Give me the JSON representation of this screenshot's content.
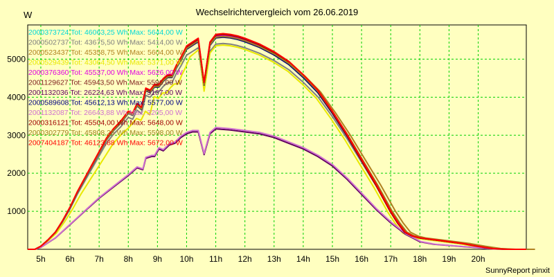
{
  "chart_data": {
    "type": "line",
    "title": "Wechselrichtervergleich vom 26.06.2019",
    "ylabel": "W",
    "xlabel": "",
    "footer": "SunnyReport pinxit",
    "grid": true,
    "legend_position": "top-left",
    "x_range": [
      4.55,
      21.65
    ],
    "y_range": [
      0,
      5900
    ],
    "x_ticks": [
      {
        "value": 5,
        "label": "5h"
      },
      {
        "value": 6,
        "label": "6h"
      },
      {
        "value": 7,
        "label": "7h"
      },
      {
        "value": 8,
        "label": "8h"
      },
      {
        "value": 9,
        "label": "9h"
      },
      {
        "value": 10,
        "label": "10h"
      },
      {
        "value": 11,
        "label": "11h"
      },
      {
        "value": 12,
        "label": "12h"
      },
      {
        "value": 13,
        "label": "13h"
      },
      {
        "value": 14,
        "label": "14h"
      },
      {
        "value": 15,
        "label": "15h"
      },
      {
        "value": 16,
        "label": "16h"
      },
      {
        "value": 17,
        "label": "17h"
      },
      {
        "value": 18,
        "label": "18h"
      },
      {
        "value": 19,
        "label": "19h"
      },
      {
        "value": 20,
        "label": "20h"
      }
    ],
    "y_ticks": [
      {
        "value": 1000,
        "label": "1000"
      },
      {
        "value": 2000,
        "label": "2000"
      },
      {
        "value": 3000,
        "label": "3000"
      },
      {
        "value": 4000,
        "label": "4000"
      },
      {
        "value": 5000,
        "label": "5000"
      }
    ],
    "series": [
      {
        "name": "2000373724 Tot: 46063,25 Wh Max: 5644,00 W",
        "color": "#00d8d8",
        "profile": "full",
        "peak": 5644,
        "late": 0,
        "early": 0
      },
      {
        "name": "2000502737 Tot: 43675,50 Wh Max: 5414,00 W",
        "color": "#808080",
        "profile": "full",
        "peak": 5414,
        "late": 0.05,
        "early": 0
      },
      {
        "name": "2000523437 Tot: 45358,75 Wh Max: 5604,00 W",
        "color": "#b08020",
        "profile": "full",
        "peak": 5604,
        "late": 0.3,
        "early": 0
      },
      {
        "name": "2000529439 Tot: 43064,50 Wh Max: 5371,00 W",
        "color": "#e8e800",
        "profile": "full",
        "peak": 5371,
        "late": -0.15,
        "early": 0.5
      },
      {
        "name": "2000376360 Tot: 45537,00 Wh Max: 5626,00 W",
        "color": "#e000e0",
        "profile": "full",
        "peak": 5626,
        "late": 0,
        "early": 0
      },
      {
        "name": "2001129627 Tot: 45943,50 Wh Max: 5596,00 W",
        "color": "#802020",
        "profile": "full",
        "peak": 5596,
        "late": 0,
        "early": 0
      },
      {
        "name": "2001132036 Tot: 26224,63 Wh Max: 3167,00 W",
        "color": "#600060",
        "profile": "half",
        "peak": 3167,
        "late": 0,
        "early": 0
      },
      {
        "name": "2000589608 Tot: 45612,13 Wh Max: 5577,00 W",
        "color": "#000080",
        "profile": "full",
        "peak": 5577,
        "late": 0,
        "early": 0
      },
      {
        "name": "2001132087 Tot: 26643,88 Wh Max: 3205,00 W",
        "color": "#d070d0",
        "profile": "half",
        "peak": 3205,
        "late": 0.05,
        "early": 0
      },
      {
        "name": "2000316121 Tot: 45504,00 Wh Max: 5648,00 W",
        "color": "#a00000",
        "profile": "full",
        "peak": 5648,
        "late": -0.05,
        "early": 0
      },
      {
        "name": "2000302779 Tot: 45808,25 Wh Max: 5598,00 W",
        "color": "#a08020",
        "profile": "full",
        "peak": 5598,
        "late": 0.1,
        "early": 0
      },
      {
        "name": "2007404187 Tot: 46123,88 Wh Max: 5672,00 W",
        "color": "#ff0000",
        "profile": "full",
        "peak": 5672,
        "late": 0,
        "early": 0
      }
    ],
    "base_full": {
      "x": [
        4.55,
        4.8,
        5.0,
        5.25,
        5.5,
        5.75,
        6.0,
        6.25,
        6.5,
        6.75,
        7.0,
        7.25,
        7.5,
        7.75,
        8.0,
        8.15,
        8.3,
        8.45,
        8.6,
        8.75,
        8.9,
        9.05,
        9.2,
        9.35,
        9.5,
        9.65,
        9.8,
        10.0,
        10.2,
        10.4,
        10.6,
        10.8,
        11.0,
        11.25,
        11.5,
        11.75,
        12.0,
        12.5,
        13.0,
        13.5,
        14.0,
        14.5,
        15.0,
        15.5,
        16.0,
        16.5,
        17.0,
        17.25,
        17.5,
        17.75,
        18.0,
        18.5,
        19.0,
        19.5,
        20.0,
        20.5,
        21.0,
        21.65
      ],
      "y": [
        0,
        0,
        80,
        250,
        450,
        750,
        1100,
        1500,
        1850,
        2200,
        2550,
        2900,
        3150,
        3350,
        3600,
        3550,
        3800,
        3700,
        4200,
        4150,
        4300,
        4300,
        4450,
        4550,
        4550,
        4800,
        5000,
        5300,
        5400,
        5500,
        4350,
        5400,
        5600,
        5620,
        5600,
        5560,
        5500,
        5350,
        5150,
        4900,
        4550,
        4150,
        3600,
        3000,
        2350,
        1700,
        1000,
        700,
        450,
        350,
        300,
        250,
        200,
        150,
        80,
        20,
        0,
        0
      ]
    },
    "base_half": {
      "x": [
        4.55,
        4.8,
        5.0,
        5.5,
        6.0,
        6.5,
        7.0,
        7.5,
        8.0,
        8.3,
        8.5,
        8.6,
        8.8,
        8.9,
        9.05,
        9.2,
        9.4,
        9.6,
        9.8,
        10.0,
        10.2,
        10.4,
        10.6,
        10.8,
        11.0,
        11.5,
        12.0,
        12.5,
        13.0,
        13.5,
        14.0,
        14.5,
        15.0,
        15.5,
        16.0,
        16.5,
        17.0,
        17.5,
        18.0,
        18.5,
        19.0,
        19.5,
        20.0,
        20.5,
        21.0,
        21.65
      ],
      "y": [
        0,
        0,
        50,
        300,
        650,
        1000,
        1350,
        1650,
        1950,
        2150,
        2100,
        2400,
        2450,
        2450,
        2650,
        2600,
        2750,
        2800,
        2950,
        3050,
        3100,
        3100,
        2500,
        3050,
        3180,
        3150,
        3100,
        3050,
        2950,
        2800,
        2650,
        2450,
        2200,
        1850,
        1450,
        1050,
        700,
        400,
        200,
        130,
        100,
        70,
        40,
        10,
        0,
        0
      ]
    }
  }
}
